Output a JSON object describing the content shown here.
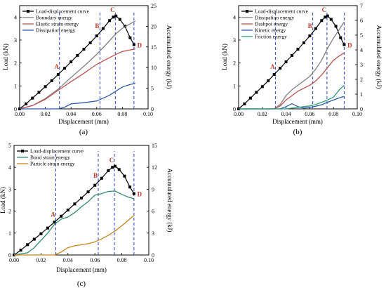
{
  "chart_data": [
    {
      "type": "line",
      "panel_label": "(a)",
      "xlabel": "Displacement (mm)",
      "ylabel": "Load (kN)",
      "y2label": "Accumulated energy (kJ)",
      "xlim": [
        0,
        0.1
      ],
      "ylim": [
        0,
        4.5
      ],
      "y2lim": [
        0,
        25
      ],
      "xticks": [
        "0.00",
        "0.02",
        "0.04",
        "0.06",
        "0.08",
        "0.10"
      ],
      "yticks": [
        "0",
        "1",
        "2",
        "3",
        "4"
      ],
      "y2ticks": [
        "0",
        "5",
        "10",
        "15",
        "20",
        "25"
      ],
      "legend_position": "top-left",
      "series": [
        {
          "name": "Load-displacement curve",
          "axis": "left",
          "color": "#000000",
          "marker": "square",
          "x": [
            0,
            0.005,
            0.01,
            0.015,
            0.02,
            0.025,
            0.03,
            0.035,
            0.04,
            0.045,
            0.05,
            0.055,
            0.06,
            0.065,
            0.07,
            0.073,
            0.075,
            0.078,
            0.082,
            0.086,
            0.089
          ],
          "y": [
            0,
            0.22,
            0.47,
            0.72,
            0.97,
            1.23,
            1.5,
            1.77,
            2.05,
            2.33,
            2.6,
            2.88,
            3.18,
            3.5,
            3.85,
            4.0,
            4.05,
            3.9,
            3.6,
            3.1,
            2.8
          ]
        },
        {
          "name": "Boundary energy",
          "axis": "right",
          "color": "#7f7f7f",
          "x": [
            0,
            0.01,
            0.02,
            0.03,
            0.04,
            0.05,
            0.06,
            0.07,
            0.075,
            0.08,
            0.09
          ],
          "y": [
            0,
            0.8,
            2.5,
            4.8,
            7.6,
            10.3,
            13.2,
            16.5,
            18.2,
            19.5,
            21.3
          ]
        },
        {
          "name": "Elastic strain energy",
          "axis": "right",
          "color": "#c0504d",
          "x": [
            0,
            0.01,
            0.02,
            0.03,
            0.04,
            0.05,
            0.06,
            0.07,
            0.075,
            0.08,
            0.085,
            0.09
          ],
          "y": [
            0,
            0.8,
            2.3,
            4.5,
            6.6,
            8.6,
            10.8,
            12.4,
            13.2,
            13.9,
            14.2,
            14.5
          ]
        },
        {
          "name": "Dissipation energy",
          "axis": "right",
          "color": "#2a5caa",
          "x": [
            0,
            0.02,
            0.03,
            0.035,
            0.04,
            0.05,
            0.06,
            0.07,
            0.075,
            0.08,
            0.085,
            0.09
          ],
          "y": [
            0,
            0,
            0,
            0.4,
            1.2,
            1.5,
            1.9,
            3.3,
            4.3,
            5.3,
            5.8,
            6.2
          ]
        }
      ],
      "markers": [
        {
          "label": "A",
          "x": 0.031
        },
        {
          "label": "B",
          "x": 0.0625
        },
        {
          "label": "C",
          "x": 0.0745
        },
        {
          "label": "D",
          "x": 0.089
        }
      ]
    },
    {
      "type": "line",
      "panel_label": "(b)",
      "xlabel": "Displacement (mm)",
      "ylabel": "Load (kN)",
      "y2label": "Accumulated energy (kJ)",
      "xlim": [
        0,
        0.1
      ],
      "ylim": [
        0,
        4.5
      ],
      "y2lim": [
        0,
        7
      ],
      "xticks": [
        "0.00",
        "0.02",
        "0.04",
        "0.06",
        "0.08",
        "0.10"
      ],
      "yticks": [
        "0",
        "1",
        "2",
        "3",
        "4"
      ],
      "y2ticks": [
        "0",
        "1",
        "2",
        "3",
        "4",
        "5",
        "6",
        "7"
      ],
      "legend_position": "top-left",
      "series": [
        {
          "name": "Load-displacement curve",
          "axis": "left",
          "color": "#000000",
          "marker": "square",
          "x": [
            0,
            0.005,
            0.01,
            0.015,
            0.02,
            0.025,
            0.03,
            0.035,
            0.04,
            0.045,
            0.05,
            0.055,
            0.06,
            0.065,
            0.07,
            0.073,
            0.075,
            0.078,
            0.082,
            0.086,
            0.089
          ],
          "y": [
            0,
            0.22,
            0.47,
            0.72,
            0.97,
            1.23,
            1.5,
            1.77,
            2.05,
            2.33,
            2.6,
            2.88,
            3.18,
            3.5,
            3.85,
            4.0,
            4.05,
            3.9,
            3.6,
            3.1,
            2.8
          ]
        },
        {
          "name": "Dissipation energy",
          "axis": "right",
          "color": "#7f7f7f",
          "x": [
            0,
            0.03,
            0.035,
            0.04,
            0.045,
            0.05,
            0.055,
            0.06,
            0.065,
            0.07,
            0.075,
            0.08,
            0.085,
            0.089
          ],
          "y": [
            0,
            0,
            0.3,
            0.9,
            1.3,
            1.6,
            1.9,
            2.2,
            2.7,
            3.3,
            4.1,
            4.8,
            5.4,
            5.9
          ]
        },
        {
          "name": "Dashpot energy",
          "axis": "right",
          "color": "#c0504d",
          "x": [
            0,
            0.03,
            0.035,
            0.04,
            0.045,
            0.05,
            0.055,
            0.06,
            0.065,
            0.07,
            0.075,
            0.08,
            0.085,
            0.089
          ],
          "y": [
            0,
            0,
            0.2,
            0.6,
            0.9,
            1.2,
            1.4,
            1.6,
            1.9,
            2.3,
            2.8,
            3.3,
            3.6,
            3.8
          ]
        },
        {
          "name": "Kinetic energy",
          "axis": "right",
          "color": "#2a5caa",
          "x": [
            0,
            0.035,
            0.04,
            0.045,
            0.05,
            0.055,
            0.06,
            0.065,
            0.07,
            0.075,
            0.08,
            0.085,
            0.089
          ],
          "y": [
            0,
            0,
            0.15,
            0.35,
            0.15,
            0.05,
            0.1,
            0.18,
            0.28,
            0.45,
            0.6,
            0.75,
            0.85
          ]
        },
        {
          "name": "Friction energy",
          "axis": "right",
          "color": "#2e9c7a",
          "x": [
            0,
            0.04,
            0.045,
            0.05,
            0.055,
            0.06,
            0.065,
            0.07,
            0.075,
            0.08,
            0.085,
            0.089
          ],
          "y": [
            0,
            0,
            0.05,
            0.1,
            0.15,
            0.2,
            0.3,
            0.45,
            0.6,
            0.8,
            1.3,
            1.6
          ]
        }
      ],
      "markers": [
        {
          "label": "A",
          "x": 0.031
        },
        {
          "label": "B",
          "x": 0.0625
        },
        {
          "label": "C",
          "x": 0.0745
        },
        {
          "label": "D",
          "x": 0.089
        }
      ]
    },
    {
      "type": "line",
      "panel_label": "(c)",
      "xlabel": "Displacement (mm)",
      "ylabel": "Load (kN)",
      "y2label": "Accumulated energy (kJ)",
      "xlim": [
        0,
        0.1
      ],
      "ylim": [
        0,
        5
      ],
      "y2lim": [
        0,
        15
      ],
      "xticks": [
        "0.00",
        "0.02",
        "0.04",
        "0.06",
        "0.08",
        "0.10"
      ],
      "yticks": [
        "0",
        "1",
        "2",
        "3",
        "4",
        "5"
      ],
      "y2ticks": [
        "0",
        "3",
        "6",
        "9",
        "12",
        "15"
      ],
      "legend_position": "top-left",
      "series": [
        {
          "name": "Load-displacement curve",
          "axis": "left",
          "color": "#000000",
          "marker": "square",
          "x": [
            0,
            0.005,
            0.01,
            0.015,
            0.02,
            0.025,
            0.03,
            0.035,
            0.04,
            0.045,
            0.05,
            0.055,
            0.06,
            0.065,
            0.07,
            0.073,
            0.075,
            0.078,
            0.082,
            0.086,
            0.089
          ],
          "y": [
            0,
            0.22,
            0.47,
            0.72,
            0.97,
            1.23,
            1.5,
            1.77,
            2.05,
            2.33,
            2.6,
            2.88,
            3.18,
            3.5,
            3.85,
            4.0,
            4.05,
            3.9,
            3.6,
            3.1,
            2.8
          ]
        },
        {
          "name": "Bond strain energy",
          "axis": "right",
          "color": "#2e8b6e",
          "x": [
            0,
            0.01,
            0.015,
            0.02,
            0.025,
            0.03,
            0.035,
            0.04,
            0.045,
            0.05,
            0.055,
            0.06,
            0.065,
            0.07,
            0.075,
            0.08,
            0.085,
            0.089
          ],
          "y": [
            0,
            0.3,
            1.0,
            2.0,
            3.0,
            4.2,
            4.9,
            5.2,
            5.8,
            6.6,
            7.3,
            8.2,
            8.4,
            8.7,
            8.75,
            8.3,
            7.9,
            7.7
          ]
        },
        {
          "name": "Particle strain energy",
          "axis": "right",
          "color": "#c8841b",
          "x": [
            0,
            0.03,
            0.035,
            0.04,
            0.045,
            0.05,
            0.055,
            0.06,
            0.065,
            0.07,
            0.075,
            0.08,
            0.085,
            0.089
          ],
          "y": [
            0,
            0,
            0.4,
            1.0,
            1.25,
            1.4,
            1.55,
            1.8,
            2.2,
            2.7,
            3.3,
            4.0,
            4.8,
            5.4
          ]
        }
      ],
      "markers": [
        {
          "label": "A",
          "x": 0.031
        },
        {
          "label": "B",
          "x": 0.0625
        },
        {
          "label": "C",
          "x": 0.0745
        },
        {
          "label": "D",
          "x": 0.089
        }
      ]
    }
  ]
}
